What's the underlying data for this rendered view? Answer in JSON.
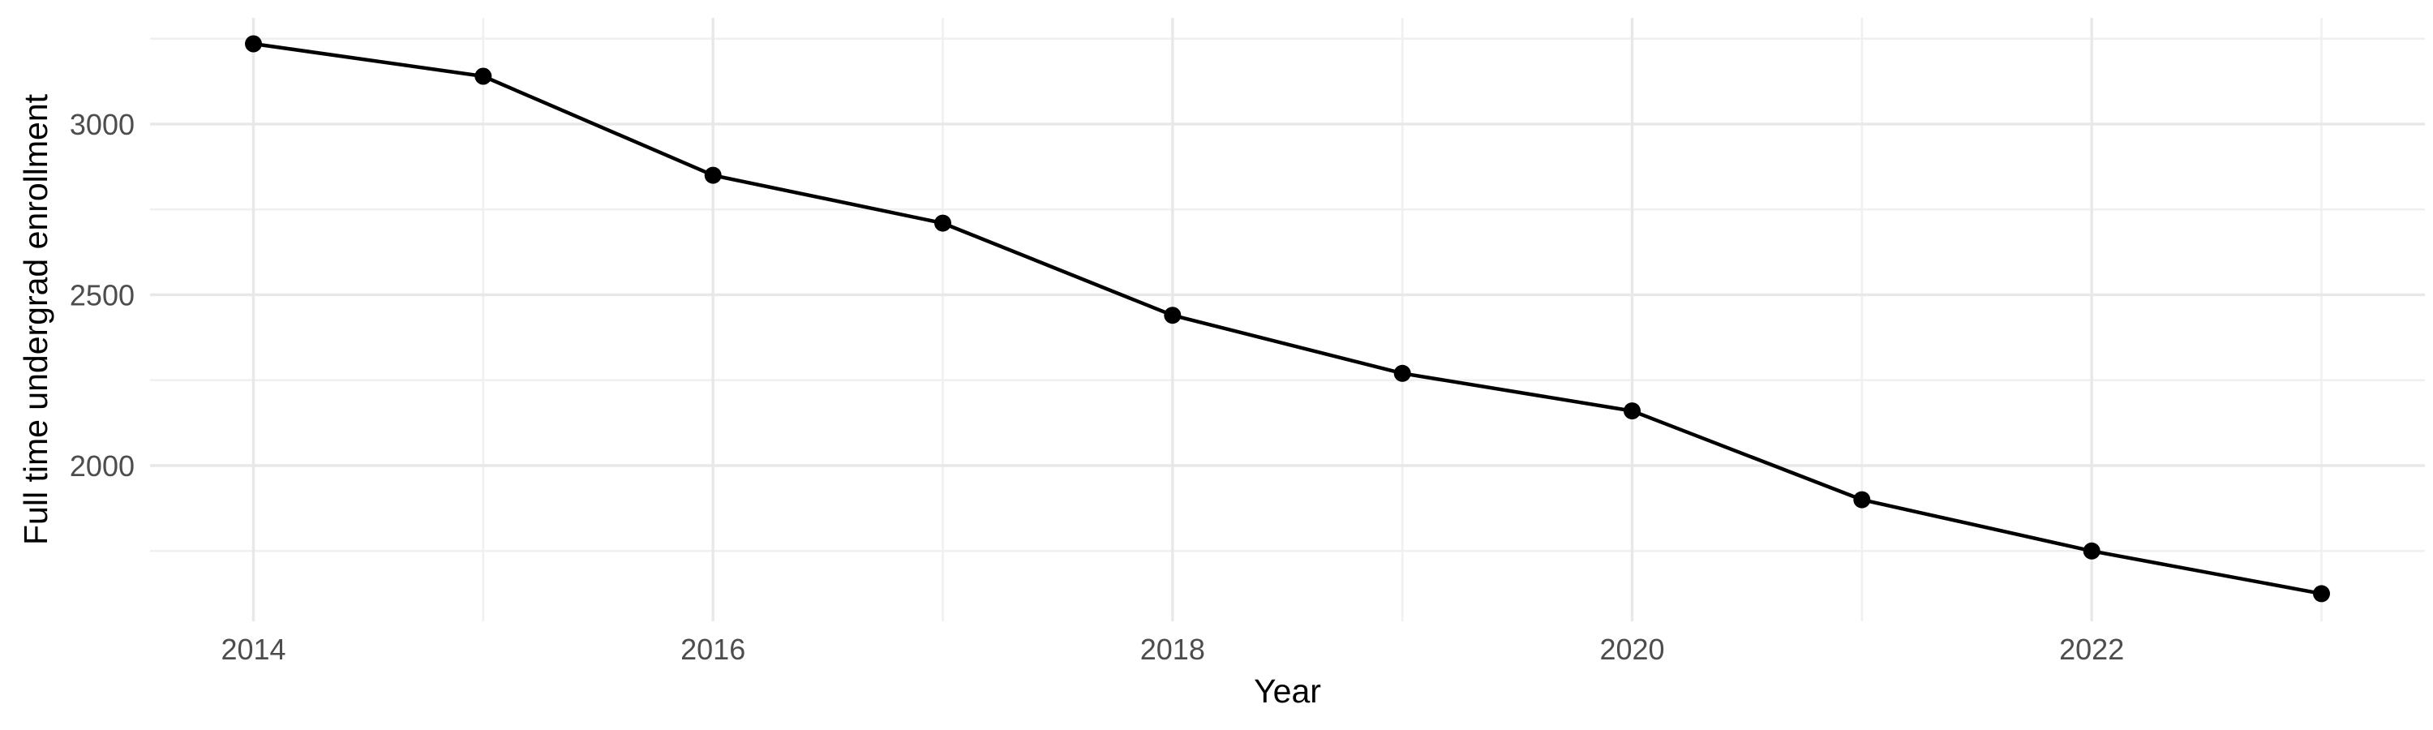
{
  "figure": {
    "background": "#ffffff"
  },
  "chart_data": {
    "type": "line",
    "title": "",
    "xlabel": "Year",
    "ylabel": "Full time undergrad enrollment",
    "x": [
      2014,
      2015,
      2016,
      2017,
      2018,
      2019,
      2020,
      2021,
      2022,
      2023
    ],
    "values": [
      3235,
      3140,
      2850,
      2710,
      2440,
      2270,
      2160,
      1900,
      1750,
      1625
    ],
    "series_name": "Full time undergrad enrollment",
    "x_ticks": [
      2014,
      2016,
      2018,
      2020,
      2022
    ],
    "x_tick_labels": [
      "2014",
      "2016",
      "2018",
      "2020",
      "2022"
    ],
    "x_minor_gridlines": [
      2015,
      2017,
      2019,
      2021,
      2023
    ],
    "y_ticks": [
      2000,
      2500,
      3000
    ],
    "y_tick_labels": [
      "2000",
      "2500",
      "3000"
    ],
    "y_minor_gridlines": [
      1750,
      2250,
      2750,
      3250
    ],
    "xlim": [
      2013.55,
      2023.45
    ],
    "ylim": [
      1544,
      3311
    ],
    "grid": "on",
    "legend": "none",
    "colors": {
      "line": "#000000",
      "point": "#000000",
      "grid_major": "#e8e8e8",
      "grid_minor": "#f0f0f0",
      "tick_label": "#4d4d4d",
      "axis_title": "#000000",
      "background": "#ffffff"
    }
  }
}
